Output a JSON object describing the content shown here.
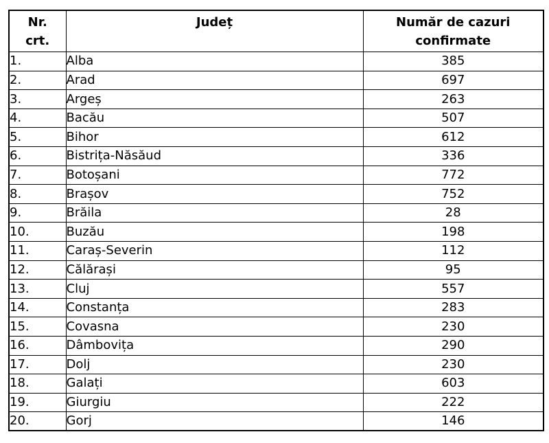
{
  "page": {
    "background_color": "#ffffff",
    "text_color": "#000000",
    "border_color": "#000000"
  },
  "table": {
    "headers": {
      "nr": "Nr.\ncrt.",
      "judet": "Județ",
      "cazuri": "Număr de cazuri\nconfirmate"
    },
    "rows": [
      {
        "nr": "1.",
        "judet": "Alba",
        "cazuri": "385"
      },
      {
        "nr": "2.",
        "judet": "Arad",
        "cazuri": "697"
      },
      {
        "nr": "3.",
        "judet": "Argeș",
        "cazuri": "263"
      },
      {
        "nr": "4.",
        "judet": "Bacău",
        "cazuri": "507"
      },
      {
        "nr": "5.",
        "judet": "Bihor",
        "cazuri": "612"
      },
      {
        "nr": "6.",
        "judet": "Bistrița-Năsăud",
        "cazuri": "336"
      },
      {
        "nr": "7.",
        "judet": "Botoșani",
        "cazuri": "772"
      },
      {
        "nr": "8.",
        "judet": "Brașov",
        "cazuri": "752"
      },
      {
        "nr": "9.",
        "judet": "Brăila",
        "cazuri": "28"
      },
      {
        "nr": "10.",
        "judet": "Buzău",
        "cazuri": "198"
      },
      {
        "nr": "11.",
        "judet": "Caraș-Severin",
        "cazuri": "112"
      },
      {
        "nr": "12.",
        "judet": "Călărași",
        "cazuri": "95"
      },
      {
        "nr": "13.",
        "judet": "Cluj",
        "cazuri": "557"
      },
      {
        "nr": "14.",
        "judet": "Constanța",
        "cazuri": "283"
      },
      {
        "nr": "15.",
        "judet": "Covasna",
        "cazuri": "230"
      },
      {
        "nr": "16.",
        "judet": "Dâmbovița",
        "cazuri": "290"
      },
      {
        "nr": "17.",
        "judet": "Dolj",
        "cazuri": "230"
      },
      {
        "nr": "18.",
        "judet": "Galați",
        "cazuri": "603"
      },
      {
        "nr": "19.",
        "judet": "Giurgiu",
        "cazuri": "222"
      },
      {
        "nr": "20.",
        "judet": "Gorj",
        "cazuri": "146"
      }
    ]
  },
  "chart_data": {
    "type": "table",
    "title": "",
    "columns": [
      "Nr. crt.",
      "Județ",
      "Număr de cazuri confirmate"
    ],
    "categories": [
      "Alba",
      "Arad",
      "Argeș",
      "Bacău",
      "Bihor",
      "Bistrița-Năsăud",
      "Botoșani",
      "Brașov",
      "Brăila",
      "Buzău",
      "Caraș-Severin",
      "Călărași",
      "Cluj",
      "Constanța",
      "Covasna",
      "Dâmbovița",
      "Dolj",
      "Galați",
      "Giurgiu",
      "Gorj"
    ],
    "values": [
      385,
      697,
      263,
      507,
      612,
      336,
      772,
      752,
      28,
      198,
      112,
      95,
      557,
      283,
      230,
      290,
      230,
      603,
      222,
      146
    ]
  }
}
